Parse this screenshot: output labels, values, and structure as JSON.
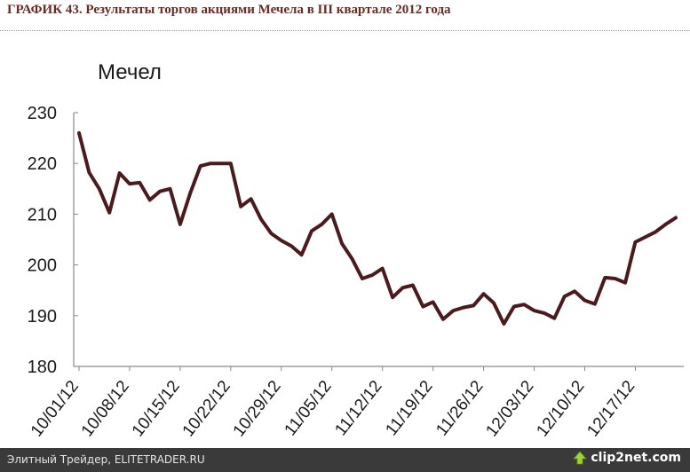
{
  "title": "ГРАФИК 43.  Результаты торгов акциями Мечела в III квартале 2012 года",
  "chart_data": {
    "type": "line",
    "series_label": "Мечел",
    "x": [
      "10/01/12",
      "10/02/12",
      "10/03/12",
      "10/04/12",
      "10/05/12",
      "10/08/12",
      "10/09/12",
      "10/10/12",
      "10/11/12",
      "10/12/12",
      "10/15/12",
      "10/16/12",
      "10/17/12",
      "10/18/12",
      "10/19/12",
      "10/22/12",
      "10/23/12",
      "10/24/12",
      "10/25/12",
      "10/26/12",
      "10/29/12",
      "10/30/12",
      "10/31/12",
      "11/01/12",
      "11/02/12",
      "11/05/12",
      "11/06/12",
      "11/07/12",
      "11/08/12",
      "11/09/12",
      "11/12/12",
      "11/13/12",
      "11/14/12",
      "11/15/12",
      "11/16/12",
      "11/19/12",
      "11/20/12",
      "11/21/12",
      "11/22/12",
      "11/23/12",
      "11/26/12",
      "11/27/12",
      "11/28/12",
      "11/29/12",
      "11/30/12",
      "12/03/12",
      "12/04/12",
      "12/05/12",
      "12/06/12",
      "12/07/12",
      "12/10/12",
      "12/11/12",
      "12/12/12",
      "12/13/12",
      "12/14/12",
      "12/17/12",
      "12/18/12",
      "12/19/12",
      "12/20/12",
      "12/21/12"
    ],
    "series": [
      {
        "values": [
          226.0,
          218.2,
          215.0,
          210.3,
          218.1,
          216.0,
          216.2,
          212.8,
          214.5,
          215.0,
          208.0,
          214.2,
          219.5,
          220.0,
          220.0,
          220.0,
          211.5,
          213.0,
          209.0,
          206.2,
          204.8,
          203.7,
          202.0,
          206.7,
          208.0,
          210.0,
          204.2,
          201.2,
          197.3,
          198.0,
          199.3,
          193.6,
          195.5,
          196.0,
          191.8,
          192.7,
          189.3,
          191.0,
          191.6,
          192.0,
          194.3,
          192.5,
          188.4,
          191.8,
          192.2,
          191.0,
          190.5,
          189.5,
          193.8,
          194.8,
          193.0,
          192.3,
          197.5,
          197.3,
          196.5,
          204.5,
          205.5,
          206.5,
          208.0,
          209.3
        ]
      }
    ],
    "xticks": [
      "10/01/12",
      "10/08/12",
      "10/15/12",
      "10/22/12",
      "10/29/12",
      "11/05/12",
      "11/12/12",
      "11/19/12",
      "11/26/12",
      "12/03/12",
      "12/10/12",
      "12/17/12"
    ],
    "yticks": [
      180,
      190,
      200,
      210,
      220,
      230
    ],
    "ylim": [
      180,
      230
    ],
    "xlabel": "",
    "ylabel": "",
    "grid": false,
    "colors": {
      "line": "#4a1a1c",
      "axis": "#8a8a8a",
      "title": "#6b2a24"
    }
  },
  "footer": {
    "source": "Элитный Трейдер, ELITETRADER.RU",
    "logo": "clip2net.com"
  }
}
